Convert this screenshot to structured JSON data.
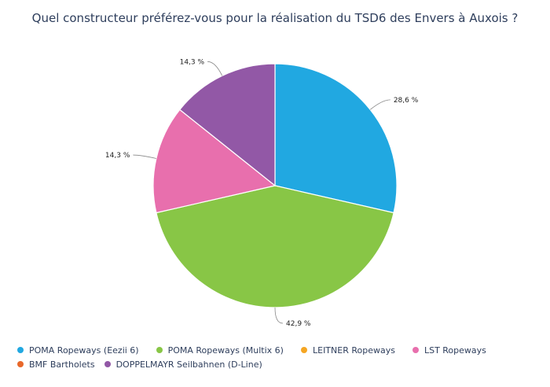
{
  "chart_data": {
    "type": "pie",
    "title": "Quel constructeur préférez-vous pour la réalisation du TSD6 des Envers à Auxois ?",
    "slices": [
      {
        "name": "POMA Ropeways (Eezii 6)",
        "value": 28.6,
        "label": "28,6 %",
        "color": "#21a8e1"
      },
      {
        "name": "POMA Ropeways (Multix 6)",
        "value": 42.9,
        "label": "42,9 %",
        "color": "#88c646"
      },
      {
        "name": "LEITNER Ropeways",
        "value": 0,
        "label": "",
        "color": "#f5a623"
      },
      {
        "name": "LST Ropeways",
        "value": 14.3,
        "label": "14,3 %",
        "color": "#e86fad"
      },
      {
        "name": "BMF Bartholets",
        "value": 0,
        "label": "",
        "color": "#e8682a"
      },
      {
        "name": "DOPPELMAYR Seilbahnen (D-Line)",
        "value": 14.3,
        "label": "14,3 %",
        "color": "#9258a6"
      }
    ],
    "legend_position": "bottom"
  }
}
